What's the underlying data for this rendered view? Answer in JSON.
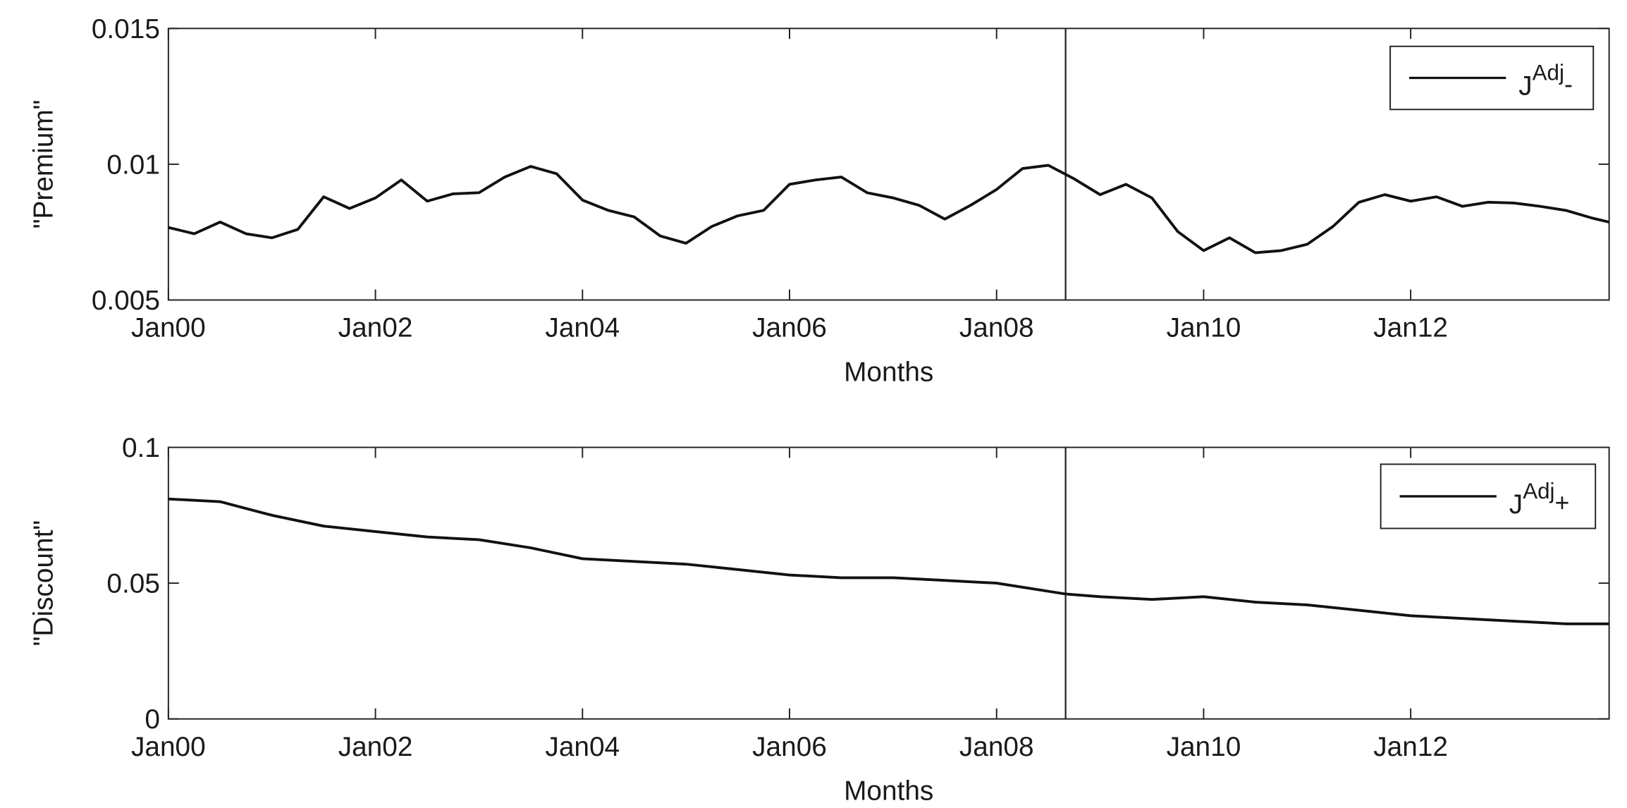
{
  "chart_data": [
    {
      "type": "line",
      "xlabel": "Months",
      "ylabel": "\"Premium\"",
      "x": [
        0,
        3,
        6,
        9,
        12,
        15,
        18,
        21,
        24,
        27,
        30,
        33,
        36,
        39,
        42,
        45,
        48,
        51,
        54,
        57,
        60,
        63,
        66,
        69,
        72,
        75,
        78,
        81,
        84,
        87,
        90,
        93,
        96,
        99,
        102,
        105,
        108,
        111,
        114,
        117,
        120,
        123,
        126,
        129,
        132,
        135,
        138,
        141,
        144,
        147,
        150,
        153,
        156,
        159,
        162,
        165,
        167
      ],
      "series": [
        {
          "name": "J",
          "name_sup": "Adj",
          "name_sub": "-",
          "color": "#111111",
          "values": [
            0.00767,
            0.00744,
            0.00787,
            0.00744,
            0.00729,
            0.0076,
            0.0088,
            0.00837,
            0.00876,
            0.00942,
            0.00864,
            0.00891,
            0.00895,
            0.00953,
            0.00992,
            0.00965,
            0.00868,
            0.0083,
            0.00806,
            0.00736,
            0.00709,
            0.00771,
            0.0081,
            0.0083,
            0.00926,
            0.00942,
            0.00953,
            0.00895,
            0.00876,
            0.00849,
            0.00798,
            0.00849,
            0.00907,
            0.00984,
            0.00996,
            0.00946,
            0.00888,
            0.00926,
            0.00876,
            0.00752,
            0.00682,
            0.00729,
            0.00674,
            0.00682,
            0.00705,
            0.00771,
            0.0086,
            0.00888,
            0.00864,
            0.0088,
            0.00845,
            0.0086,
            0.00857,
            0.00845,
            0.0083,
            0.00802,
            0.00787
          ]
        }
      ],
      "xlim": [
        0,
        167
      ],
      "ylim": [
        0.005,
        0.015
      ],
      "yticks": [
        0.005,
        0.01,
        0.015
      ],
      "xticks": [
        {
          "value": 0,
          "label": "Jan00"
        },
        {
          "value": 24,
          "label": "Jan02"
        },
        {
          "value": 48,
          "label": "Jan04"
        },
        {
          "value": 72,
          "label": "Jan06"
        },
        {
          "value": 96,
          "label": "Jan08"
        },
        {
          "value": 120,
          "label": "Jan10"
        },
        {
          "value": 144,
          "label": "Jan12"
        }
      ],
      "vline": 104,
      "legend": "upper right"
    },
    {
      "type": "line",
      "xlabel": "Months",
      "ylabel": "\"Discount\"",
      "x": [
        0,
        6,
        12,
        18,
        24,
        30,
        36,
        42,
        48,
        54,
        60,
        66,
        72,
        78,
        84,
        90,
        96,
        102,
        104,
        108,
        114,
        120,
        126,
        132,
        138,
        144,
        150,
        156,
        162,
        167
      ],
      "series": [
        {
          "name": "J",
          "name_sup": "Adj",
          "name_sub": "+",
          "color": "#111111",
          "values": [
            0.081,
            0.08,
            0.075,
            0.071,
            0.069,
            0.067,
            0.066,
            0.063,
            0.059,
            0.058,
            0.057,
            0.055,
            0.053,
            0.052,
            0.052,
            0.051,
            0.05,
            0.047,
            0.046,
            0.045,
            0.044,
            0.045,
            0.043,
            0.042,
            0.04,
            0.038,
            0.037,
            0.036,
            0.035,
            0.035
          ]
        }
      ],
      "xlim": [
        0,
        167
      ],
      "ylim": [
        0,
        0.1
      ],
      "yticks": [
        0,
        0.05,
        0.1
      ],
      "xticks": [
        {
          "value": 0,
          "label": "Jan00"
        },
        {
          "value": 24,
          "label": "Jan02"
        },
        {
          "value": 48,
          "label": "Jan04"
        },
        {
          "value": 72,
          "label": "Jan06"
        },
        {
          "value": 96,
          "label": "Jan08"
        },
        {
          "value": 120,
          "label": "Jan10"
        },
        {
          "value": 144,
          "label": "Jan12"
        }
      ],
      "vline": 104,
      "legend": "upper right"
    }
  ]
}
